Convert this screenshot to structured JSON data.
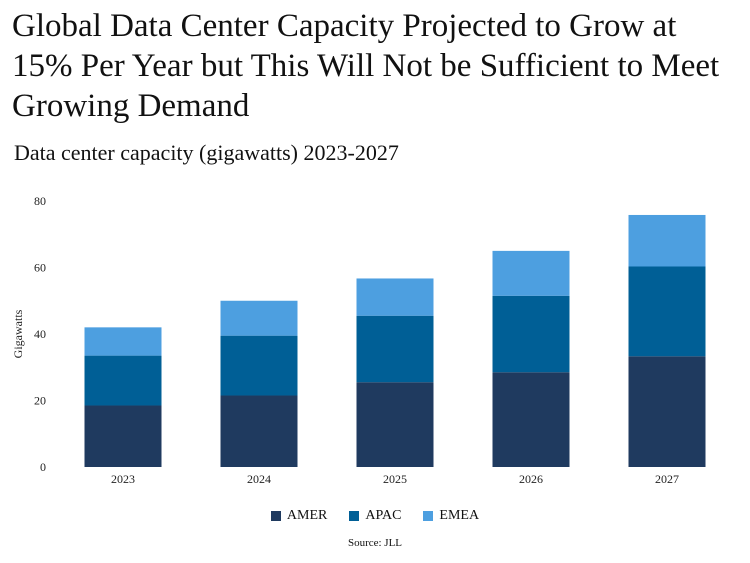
{
  "title": "Global Data Center Capacity Projected to Grow at 15% Per Year but This Will Not be Sufficient to Meet Growing Demand",
  "subtitle": "Data center capacity (gigawatts) 2023-2027",
  "source": "Source: JLL",
  "chart_data": {
    "type": "bar",
    "stacked": true,
    "categories": [
      "2023",
      "2024",
      "2025",
      "2026",
      "2027"
    ],
    "ylabel": "Gigawatts",
    "xlabel": "",
    "ylim": [
      0,
      80
    ],
    "yticks": [
      0,
      20,
      40,
      60,
      80
    ],
    "grid": false,
    "legend_position": "bottom",
    "series": [
      {
        "name": "AMER",
        "color": "#1f3a5f",
        "values": [
          18.5,
          21.5,
          25.5,
          28.5,
          33.3
        ]
      },
      {
        "name": "APAC",
        "color": "#005f96",
        "values": [
          15,
          18,
          20,
          23,
          27
        ]
      },
      {
        "name": "EMEA",
        "color": "#4d9fe0",
        "values": [
          8.5,
          10.5,
          11.2,
          13.5,
          15.5
        ]
      }
    ]
  }
}
